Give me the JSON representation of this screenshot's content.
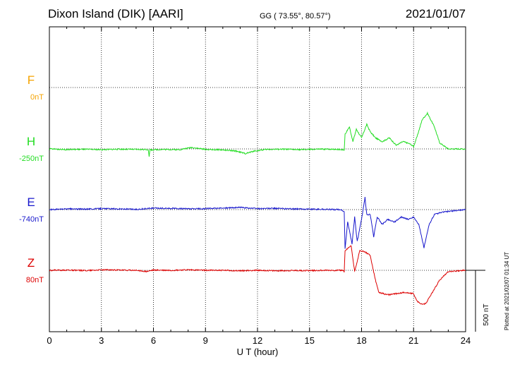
{
  "header": {
    "station": "Dixon Island (DIK)  [AARI]",
    "coords": "GG ( 73.55°,  80.57°)",
    "date": "2021/01/07"
  },
  "footer": {
    "plotted": "Plotted at 2021/02/07 01:34 UT"
  },
  "scale_bar": {
    "label": "500 nT",
    "value_nT": 500
  },
  "chart_data": {
    "type": "line",
    "xlabel": "U T (hour)",
    "xlim": [
      0,
      24
    ],
    "xticks": [
      0,
      3,
      6,
      9,
      12,
      15,
      18,
      21,
      24
    ],
    "grid": true,
    "units": "nT",
    "series": [
      {
        "name": "F",
        "baseline_label": "0nT",
        "color": "#f5a300",
        "points": []
      },
      {
        "name": "H",
        "baseline_label": "-250nT",
        "color": "#22dd22",
        "points": [
          [
            0,
            0
          ],
          [
            1,
            -5
          ],
          [
            2,
            -3
          ],
          [
            3,
            -6
          ],
          [
            4,
            -2
          ],
          [
            5,
            -4
          ],
          [
            5.7,
            -5
          ],
          [
            5.75,
            -60
          ],
          [
            5.8,
            -8
          ],
          [
            6.5,
            -4
          ],
          [
            7.5,
            -6
          ],
          [
            8.2,
            12
          ],
          [
            9,
            -4
          ],
          [
            10,
            -8
          ],
          [
            10.8,
            -18
          ],
          [
            11.3,
            -38
          ],
          [
            11.8,
            -18
          ],
          [
            12.5,
            -4
          ],
          [
            13.5,
            -2
          ],
          [
            14.5,
            -6
          ],
          [
            15.5,
            -2
          ],
          [
            16.5,
            -2
          ],
          [
            17.0,
            -8
          ],
          [
            17.05,
            120
          ],
          [
            17.3,
            180
          ],
          [
            17.5,
            60
          ],
          [
            17.7,
            160
          ],
          [
            18.0,
            90
          ],
          [
            18.3,
            200
          ],
          [
            18.5,
            140
          ],
          [
            18.8,
            90
          ],
          [
            19.2,
            60
          ],
          [
            19.6,
            90
          ],
          [
            20.0,
            30
          ],
          [
            20.4,
            60
          ],
          [
            20.8,
            40
          ],
          [
            21.0,
            20
          ],
          [
            21.2,
            100
          ],
          [
            21.5,
            240
          ],
          [
            21.8,
            290
          ],
          [
            22.2,
            180
          ],
          [
            22.5,
            50
          ],
          [
            23.0,
            0
          ],
          [
            24,
            0
          ]
        ]
      },
      {
        "name": "E",
        "baseline_label": "-740nT",
        "color": "#1818cc",
        "points": [
          [
            0,
            0
          ],
          [
            1,
            6
          ],
          [
            2,
            4
          ],
          [
            3,
            8
          ],
          [
            4,
            6
          ],
          [
            5,
            2
          ],
          [
            5.6,
            8
          ],
          [
            6,
            12
          ],
          [
            7,
            10
          ],
          [
            8,
            6
          ],
          [
            9,
            8
          ],
          [
            10,
            12
          ],
          [
            11,
            18
          ],
          [
            12,
            8
          ],
          [
            13,
            10
          ],
          [
            14,
            6
          ],
          [
            15,
            4
          ],
          [
            16,
            2
          ],
          [
            16.8,
            0
          ],
          [
            17.0,
            -18
          ],
          [
            17.05,
            -320
          ],
          [
            17.2,
            -100
          ],
          [
            17.45,
            -280
          ],
          [
            17.6,
            -60
          ],
          [
            17.75,
            -260
          ],
          [
            18.0,
            -80
          ],
          [
            18.2,
            100
          ],
          [
            18.3,
            -40
          ],
          [
            18.5,
            -40
          ],
          [
            18.7,
            -220
          ],
          [
            18.9,
            -60
          ],
          [
            19.2,
            -120
          ],
          [
            19.5,
            -80
          ],
          [
            19.9,
            -100
          ],
          [
            20.3,
            -60
          ],
          [
            20.7,
            -80
          ],
          [
            21.0,
            -60
          ],
          [
            21.3,
            -120
          ],
          [
            21.6,
            -310
          ],
          [
            21.9,
            -120
          ],
          [
            22.2,
            -40
          ],
          [
            22.7,
            -20
          ],
          [
            23.3,
            -10
          ],
          [
            24,
            0
          ]
        ]
      },
      {
        "name": "Z",
        "baseline_label": "80nT",
        "color": "#dd0000",
        "points": [
          [
            0,
            0
          ],
          [
            1,
            2
          ],
          [
            2,
            -2
          ],
          [
            3,
            4
          ],
          [
            4,
            2
          ],
          [
            5,
            0
          ],
          [
            5.6,
            -10
          ],
          [
            6,
            2
          ],
          [
            7,
            0
          ],
          [
            8,
            4
          ],
          [
            9,
            0
          ],
          [
            10,
            0
          ],
          [
            11,
            -4
          ],
          [
            12,
            0
          ],
          [
            13,
            -4
          ],
          [
            14,
            -2
          ],
          [
            15,
            -2
          ],
          [
            16,
            0
          ],
          [
            16.9,
            0
          ],
          [
            17.0,
            -12
          ],
          [
            17.05,
            160
          ],
          [
            17.4,
            200
          ],
          [
            17.6,
            -10
          ],
          [
            17.9,
            160
          ],
          [
            18.2,
            150
          ],
          [
            18.5,
            120
          ],
          [
            18.8,
            -80
          ],
          [
            19.0,
            -180
          ],
          [
            19.5,
            -200
          ],
          [
            20.0,
            -190
          ],
          [
            20.5,
            -180
          ],
          [
            21.0,
            -190
          ],
          [
            21.2,
            -250
          ],
          [
            21.5,
            -280
          ],
          [
            21.7,
            -270
          ],
          [
            22.0,
            -200
          ],
          [
            22.5,
            -80
          ],
          [
            23.0,
            -10
          ],
          [
            24,
            0
          ]
        ]
      }
    ]
  }
}
